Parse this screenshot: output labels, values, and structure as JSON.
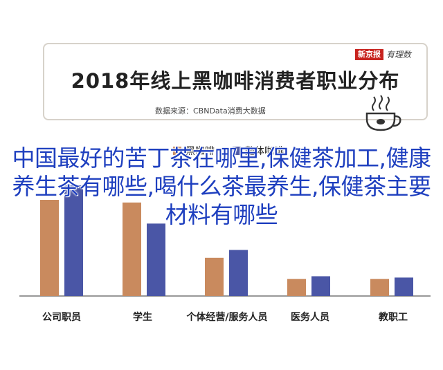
{
  "header": {
    "title": "2018年线上黑咖啡消费者职业分布",
    "source": "数据来源：CBNData消费大数据",
    "brand_badge": "新京报",
    "brand_script": "有理数"
  },
  "overlay_text": "中国最好的苦丁茶在哪里,保健茶加工,健康养生茶有哪些,喝什么茶最养生,保健茶主要材料有哪些",
  "colors": {
    "series1": "#c98a5e",
    "series2": "#4a56a6"
  },
  "chart_data": {
    "type": "bar",
    "title": "2018年线上黑咖啡消费者职业分布",
    "categories": [
      "公司职员",
      "学生",
      "个体经营/服务人员",
      "医务人员",
      "教职工"
    ],
    "series": [
      {
        "name": "黑咖啡",
        "values": [
          73,
          71,
          29,
          13,
          13
        ]
      },
      {
        "name": "整体咖啡",
        "values": [
          84,
          55,
          35,
          15,
          14
        ]
      }
    ],
    "ylim": [
      0,
      100
    ],
    "grid": false,
    "legend": "top"
  }
}
